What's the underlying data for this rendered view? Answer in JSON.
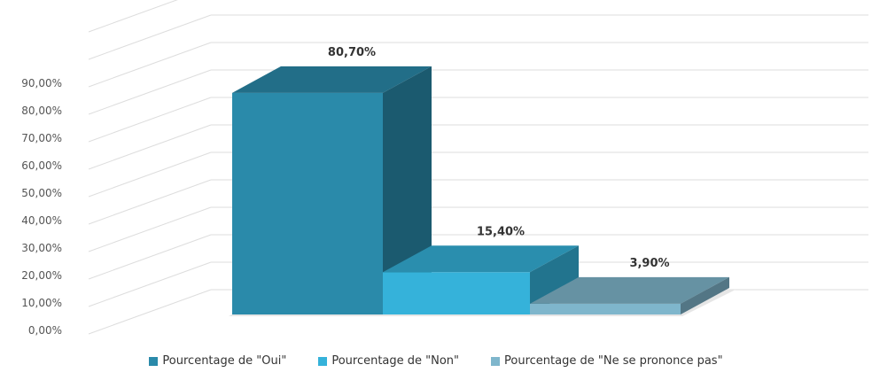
{
  "chart_data": {
    "type": "bar",
    "categories": [
      "Pourcentage de \"Oui\"",
      "Pourcentage de \"Non\"",
      "Pourcentage de \"Ne se prononce pas\""
    ],
    "values": [
      80.7,
      15.4,
      3.9
    ],
    "data_labels": [
      "80,70%",
      "15,40%",
      "3,90%"
    ],
    "y_ticks": [
      "0,00%",
      "10,00%",
      "20,00%",
      "30,00%",
      "40,00%",
      "50,00%",
      "60,00%",
      "70,00%",
      "80,00%",
      "90,00%"
    ],
    "ylim": [
      0,
      90
    ],
    "grid": true,
    "legend_position": "bottom",
    "colors": [
      "#2a8aaa",
      "#35b2da",
      "#7fb6cc"
    ],
    "style": "3d-column"
  }
}
